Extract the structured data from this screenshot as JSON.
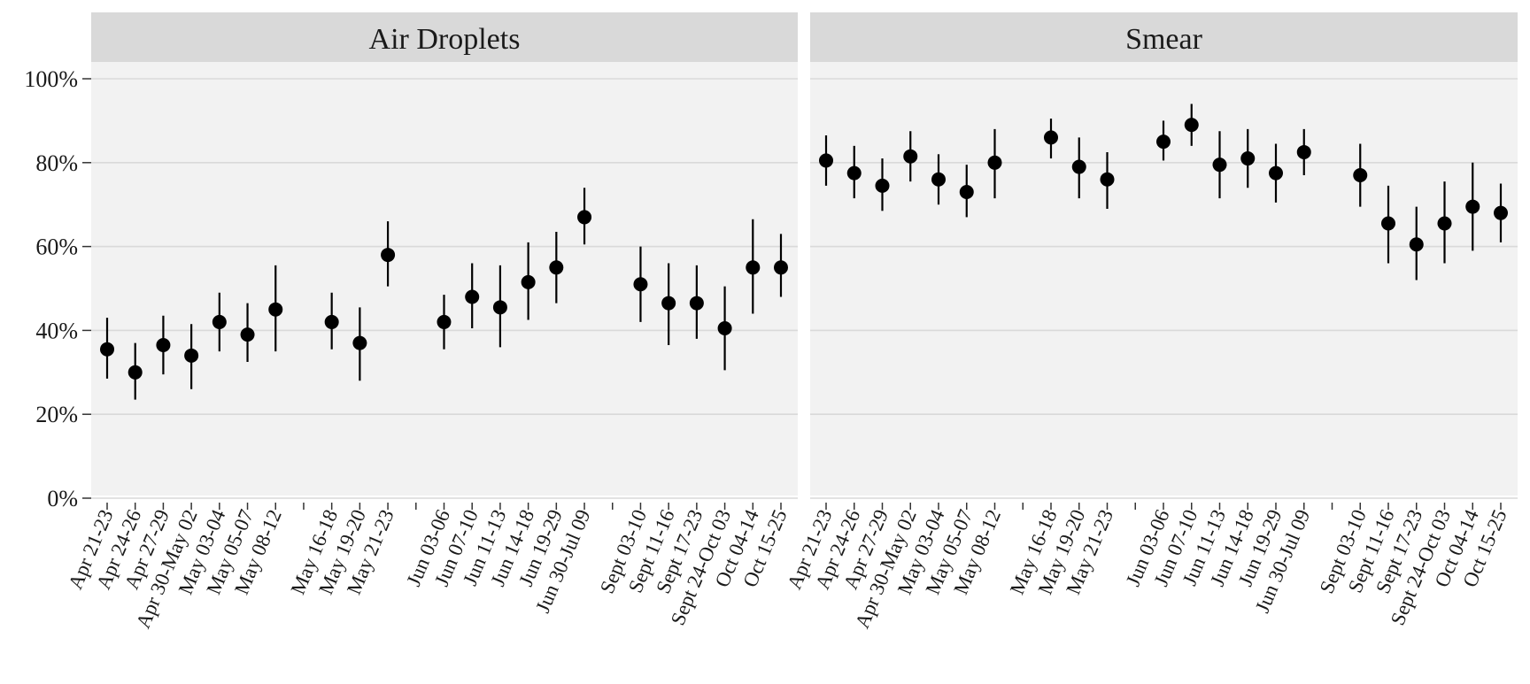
{
  "chart_data": {
    "type": "scatter",
    "subtype": "pointrange",
    "y_axis": {
      "ticks": [
        0,
        20,
        40,
        60,
        80,
        100
      ],
      "tick_labels": [
        "0%",
        "20%",
        "40%",
        "60%",
        "80%",
        "100%"
      ],
      "ylim": [
        0,
        100
      ]
    },
    "grid": true,
    "x_slots": [
      "Apr 21-23",
      "Apr 24-26",
      "Apr 27-29",
      "Apr 30-May 02",
      "May 03-04",
      "May 05-07",
      "May 08-12",
      "",
      "May 16-18",
      "May 19-20",
      "May 21-23",
      "",
      "Jun 03-06",
      "Jun 07-10",
      "Jun 11-13",
      "Jun 14-18",
      "Jun 19-29",
      "Jun 30-Jul 09",
      "",
      "Sept 03-10",
      "Sept 11-16",
      "Sept 17-23",
      "Sept 24-Oct 03",
      "Oct 04-14",
      "Oct 15-25"
    ],
    "panels": [
      {
        "strip_label": "Air Droplets",
        "points": [
          {
            "x": "Apr 21-23",
            "y": 35.5,
            "ymin": 28.5,
            "ymax": 43
          },
          {
            "x": "Apr 24-26",
            "y": 30,
            "ymin": 23.5,
            "ymax": 37
          },
          {
            "x": "Apr 27-29",
            "y": 36.5,
            "ymin": 29.5,
            "ymax": 43.5
          },
          {
            "x": "Apr 30-May 02",
            "y": 34,
            "ymin": 26,
            "ymax": 41.5
          },
          {
            "x": "May 03-04",
            "y": 42,
            "ymin": 35,
            "ymax": 49
          },
          {
            "x": "May 05-07",
            "y": 39,
            "ymin": 32.5,
            "ymax": 46.5
          },
          {
            "x": "May 08-12",
            "y": 45,
            "ymin": 35,
            "ymax": 55.5
          },
          {
            "x": "May 16-18",
            "y": 42,
            "ymin": 35.5,
            "ymax": 49
          },
          {
            "x": "May 19-20",
            "y": 37,
            "ymin": 28,
            "ymax": 45.5
          },
          {
            "x": "May 21-23",
            "y": 58,
            "ymin": 50.5,
            "ymax": 66
          },
          {
            "x": "Jun 03-06",
            "y": 42,
            "ymin": 35.5,
            "ymax": 48.5
          },
          {
            "x": "Jun 07-10",
            "y": 48,
            "ymin": 40.5,
            "ymax": 56
          },
          {
            "x": "Jun 11-13",
            "y": 45.5,
            "ymin": 36,
            "ymax": 55.5
          },
          {
            "x": "Jun 14-18",
            "y": 51.5,
            "ymin": 42.5,
            "ymax": 61
          },
          {
            "x": "Jun 19-29",
            "y": 55,
            "ymin": 46.5,
            "ymax": 63.5
          },
          {
            "x": "Jun 30-Jul 09",
            "y": 67,
            "ymin": 60.5,
            "ymax": 74
          },
          {
            "x": "Sept 03-10",
            "y": 51,
            "ymin": 42,
            "ymax": 60
          },
          {
            "x": "Sept 11-16",
            "y": 46.5,
            "ymin": 36.5,
            "ymax": 56
          },
          {
            "x": "Sept 17-23",
            "y": 46.5,
            "ymin": 38,
            "ymax": 55.5
          },
          {
            "x": "Sept 24-Oct 03",
            "y": 40.5,
            "ymin": 30.5,
            "ymax": 50.5
          },
          {
            "x": "Oct 04-14",
            "y": 55,
            "ymin": 44,
            "ymax": 66.5
          },
          {
            "x": "Oct 15-25",
            "y": 55,
            "ymin": 48,
            "ymax": 63
          }
        ]
      },
      {
        "strip_label": "Smear",
        "points": [
          {
            "x": "Apr 21-23",
            "y": 80.5,
            "ymin": 74.5,
            "ymax": 86.5
          },
          {
            "x": "Apr 24-26",
            "y": 77.5,
            "ymin": 71.5,
            "ymax": 84
          },
          {
            "x": "Apr 27-29",
            "y": 74.5,
            "ymin": 68.5,
            "ymax": 81
          },
          {
            "x": "Apr 30-May 02",
            "y": 81.5,
            "ymin": 75.5,
            "ymax": 87.5
          },
          {
            "x": "May 03-04",
            "y": 76,
            "ymin": 70,
            "ymax": 82
          },
          {
            "x": "May 05-07",
            "y": 73,
            "ymin": 67,
            "ymax": 79.5
          },
          {
            "x": "May 08-12",
            "y": 80,
            "ymin": 71.5,
            "ymax": 88
          },
          {
            "x": "May 16-18",
            "y": 86,
            "ymin": 81,
            "ymax": 90.5
          },
          {
            "x": "May 19-20",
            "y": 79,
            "ymin": 71.5,
            "ymax": 86
          },
          {
            "x": "May 21-23",
            "y": 76,
            "ymin": 69,
            "ymax": 82.5
          },
          {
            "x": "Jun 03-06",
            "y": 85,
            "ymin": 80.5,
            "ymax": 90
          },
          {
            "x": "Jun 07-10",
            "y": 89,
            "ymin": 84,
            "ymax": 94
          },
          {
            "x": "Jun 11-13",
            "y": 79.5,
            "ymin": 71.5,
            "ymax": 87.5
          },
          {
            "x": "Jun 14-18",
            "y": 81,
            "ymin": 74,
            "ymax": 88
          },
          {
            "x": "Jun 19-29",
            "y": 77.5,
            "ymin": 70.5,
            "ymax": 84.5
          },
          {
            "x": "Jun 30-Jul 09",
            "y": 82.5,
            "ymin": 77,
            "ymax": 88
          },
          {
            "x": "Sept 03-10",
            "y": 77,
            "ymin": 69.5,
            "ymax": 84.5
          },
          {
            "x": "Sept 11-16",
            "y": 65.5,
            "ymin": 56,
            "ymax": 74.5
          },
          {
            "x": "Sept 17-23",
            "y": 60.5,
            "ymin": 52,
            "ymax": 69.5
          },
          {
            "x": "Sept 24-Oct 03",
            "y": 65.5,
            "ymin": 56,
            "ymax": 75.5
          },
          {
            "x": "Oct 04-14",
            "y": 69.5,
            "ymin": 59,
            "ymax": 80
          },
          {
            "x": "Oct 15-25",
            "y": 68,
            "ymin": 61,
            "ymax": 75
          }
        ]
      }
    ]
  },
  "colors": {
    "panel_background": "#f2f2f2",
    "strip_background": "#d9d9d9",
    "gridline": "#d9d9d9",
    "point": "#000000",
    "text": "#1a1a1a",
    "tick": "#333333"
  }
}
